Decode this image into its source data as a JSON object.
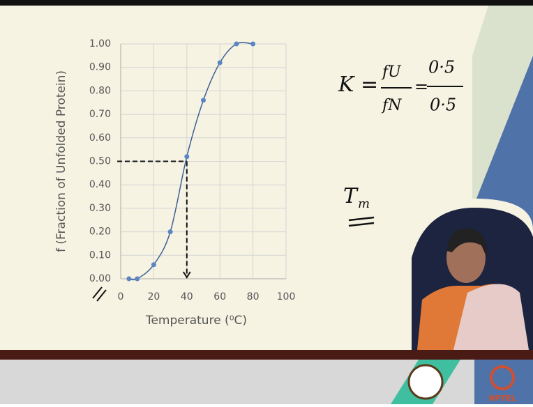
{
  "chart_data": {
    "type": "scatter-line",
    "ylabel": "f (Fraction of Unfolded Protein)",
    "xlabel": "Temperature (⁰C)",
    "x": [
      5,
      10,
      20,
      30,
      40,
      50,
      60,
      70,
      80
    ],
    "series": [
      {
        "color": "#5b86c4",
        "values": [
          0,
          0,
          0.06,
          0.2,
          0.52,
          0.76,
          0.92,
          1.0,
          1.0
        ]
      }
    ],
    "xlim": [
      0,
      100
    ],
    "xticks": [
      0,
      20,
      40,
      60,
      80,
      100
    ],
    "ylim": [
      0,
      1
    ],
    "yticks": [
      {
        "value": 0,
        "label": "0.00"
      },
      {
        "value": 0.1,
        "label": "0.10"
      },
      {
        "value": 0.2,
        "label": "0.20"
      },
      {
        "value": 0.3,
        "label": "0.30"
      },
      {
        "value": 0.4,
        "label": "0.40"
      },
      {
        "value": 0.5,
        "label": "0.50"
      },
      {
        "value": 0.6,
        "label": "0.60"
      },
      {
        "value": 0.7,
        "label": "0.70"
      },
      {
        "value": 0.8,
        "label": "0.80"
      },
      {
        "value": 0.9,
        "label": "0.90"
      },
      {
        "value": 1.0,
        "label": "1.00"
      }
    ],
    "grid": true,
    "guide": {
      "y": 0.5,
      "x": 40
    }
  },
  "annotations": {
    "k": "K =",
    "fu": "fU",
    "fn": "fN",
    "eq": "=",
    "num": "0·5",
    "den": "0·5",
    "tm_base": "T",
    "tm_sub": "m"
  },
  "footer": {
    "logo_text": "NPTEL"
  }
}
